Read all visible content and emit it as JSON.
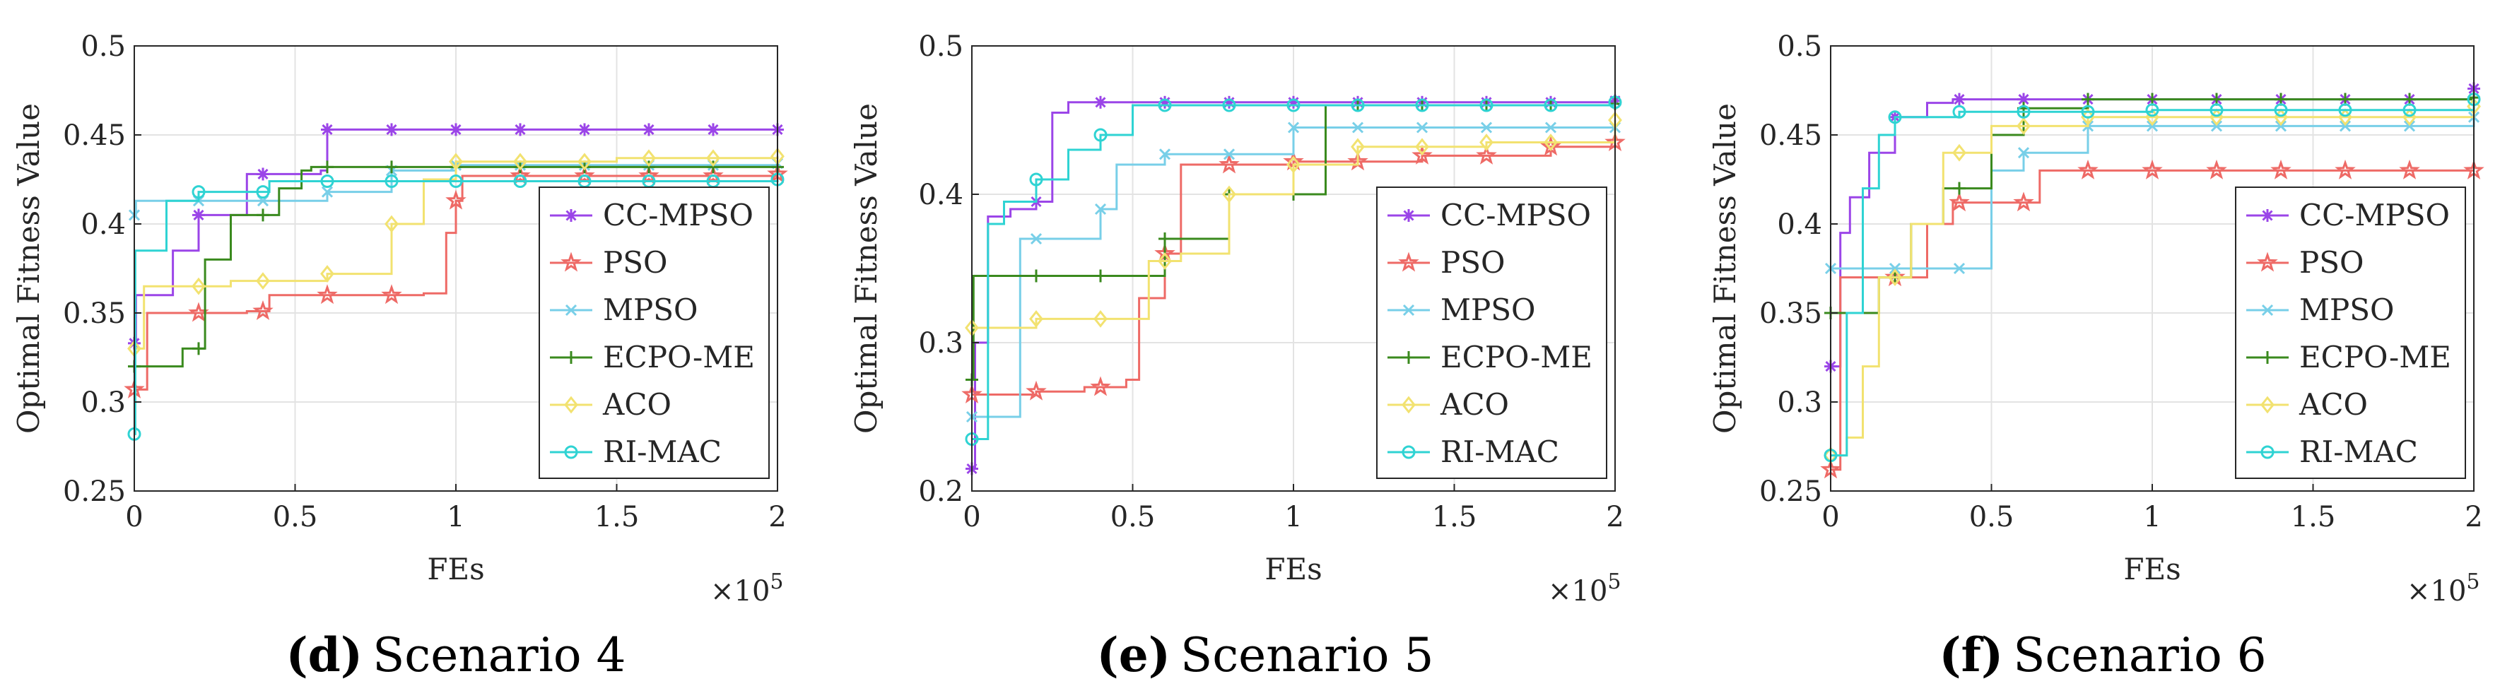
{
  "colors": {
    "CC-MPSO": "#9b45e8",
    "PSO": "#ee6a66",
    "MPSO": "#78cfe8",
    "ECPO-ME": "#3a8a1e",
    "ACO": "#f2e270",
    "RI-MAC": "#2fd3d3",
    "grid": "#e3e3e3",
    "axis": "#262626"
  },
  "chart_data": [
    {
      "type": "line",
      "caption": {
        "letter": "(d)",
        "text": "Scenario 4"
      },
      "xlabel": "FEs",
      "ylabel": "Optimal Fitness Value",
      "x_multiplier": "×10",
      "x_multiplier_exp": "5",
      "xlim": [
        0,
        2
      ],
      "ylim": [
        0.25,
        0.5
      ],
      "xticks": [
        "0",
        "0.5",
        "1",
        "1.5",
        "2"
      ],
      "yticks": [
        "0.25",
        "0.3",
        "0.35",
        "0.4",
        "0.45",
        "0.5"
      ],
      "legend_position": "lower-right",
      "series": [
        {
          "name": "CC-MPSO",
          "marker": "asterisk",
          "points": [
            [
              0,
              0.333
            ],
            [
              0.005,
              0.36
            ],
            [
              0.06,
              0.36
            ],
            [
              0.12,
              0.385
            ],
            [
              0.2,
              0.405
            ],
            [
              0.35,
              0.428
            ],
            [
              0.58,
              0.43
            ],
            [
              0.6,
              0.453
            ],
            [
              2,
              0.453
            ]
          ]
        },
        {
          "name": "PSO",
          "marker": "star",
          "points": [
            [
              0,
              0.307
            ],
            [
              0.04,
              0.35
            ],
            [
              0.35,
              0.351
            ],
            [
              0.42,
              0.36
            ],
            [
              0.9,
              0.361
            ],
            [
              0.97,
              0.395
            ],
            [
              1.0,
              0.413
            ],
            [
              1.02,
              0.427
            ],
            [
              2,
              0.428
            ]
          ]
        },
        {
          "name": "MPSO",
          "marker": "cross",
          "points": [
            [
              0,
              0.405
            ],
            [
              0.005,
              0.413
            ],
            [
              0.55,
              0.413
            ],
            [
              0.6,
              0.418
            ],
            [
              0.8,
              0.43
            ],
            [
              1.0,
              0.433
            ],
            [
              2,
              0.434
            ]
          ]
        },
        {
          "name": "ECPO-ME",
          "marker": "plus",
          "points": [
            [
              0,
              0.32
            ],
            [
              0.05,
              0.32
            ],
            [
              0.15,
              0.33
            ],
            [
              0.22,
              0.38
            ],
            [
              0.3,
              0.405
            ],
            [
              0.45,
              0.42
            ],
            [
              0.52,
              0.43
            ],
            [
              0.55,
              0.432
            ],
            [
              1.0,
              0.432
            ],
            [
              2,
              0.432
            ]
          ]
        },
        {
          "name": "ACO",
          "marker": "diamond",
          "points": [
            [
              0,
              0.33
            ],
            [
              0.03,
              0.365
            ],
            [
              0.3,
              0.368
            ],
            [
              0.6,
              0.372
            ],
            [
              0.8,
              0.4
            ],
            [
              0.9,
              0.425
            ],
            [
              1.0,
              0.435
            ],
            [
              1.5,
              0.437
            ],
            [
              2,
              0.438
            ]
          ]
        },
        {
          "name": "RI-MAC",
          "marker": "circle",
          "points": [
            [
              0,
              0.282
            ],
            [
              0.003,
              0.385
            ],
            [
              0.03,
              0.385
            ],
            [
              0.1,
              0.413
            ],
            [
              0.2,
              0.418
            ],
            [
              0.4,
              0.418
            ],
            [
              0.42,
              0.424
            ],
            [
              2,
              0.425
            ]
          ]
        }
      ]
    },
    {
      "type": "line",
      "caption": {
        "letter": "(e)",
        "text": "Scenario 5"
      },
      "xlabel": "FEs",
      "ylabel": "Optimal Fitness Value",
      "x_multiplier": "×10",
      "x_multiplier_exp": "5",
      "xlim": [
        0,
        2
      ],
      "ylim": [
        0.2,
        0.5
      ],
      "xticks": [
        "0",
        "0.5",
        "1",
        "1.5",
        "2"
      ],
      "yticks": [
        "0.2",
        "0.3",
        "0.4",
        "0.5"
      ],
      "legend_position": "lower-right",
      "series": [
        {
          "name": "CC-MPSO",
          "marker": "asterisk",
          "points": [
            [
              0,
              0.215
            ],
            [
              0.01,
              0.3
            ],
            [
              0.05,
              0.385
            ],
            [
              0.12,
              0.39
            ],
            [
              0.2,
              0.395
            ],
            [
              0.25,
              0.455
            ],
            [
              0.3,
              0.462
            ],
            [
              2,
              0.463
            ]
          ]
        },
        {
          "name": "PSO",
          "marker": "star",
          "points": [
            [
              0,
              0.265
            ],
            [
              0.2,
              0.267
            ],
            [
              0.35,
              0.27
            ],
            [
              0.48,
              0.275
            ],
            [
              0.52,
              0.33
            ],
            [
              0.6,
              0.36
            ],
            [
              0.65,
              0.42
            ],
            [
              1.0,
              0.422
            ],
            [
              1.4,
              0.426
            ],
            [
              1.8,
              0.432
            ],
            [
              2,
              0.435
            ]
          ]
        },
        {
          "name": "MPSO",
          "marker": "cross",
          "points": [
            [
              0,
              0.25
            ],
            [
              0.12,
              0.25
            ],
            [
              0.15,
              0.37
            ],
            [
              0.4,
              0.39
            ],
            [
              0.45,
              0.42
            ],
            [
              0.6,
              0.427
            ],
            [
              1.0,
              0.445
            ],
            [
              2,
              0.445
            ]
          ]
        },
        {
          "name": "ECPO-ME",
          "marker": "plus",
          "points": [
            [
              0,
              0.275
            ],
            [
              0.005,
              0.345
            ],
            [
              0.5,
              0.345
            ],
            [
              0.6,
              0.37
            ],
            [
              0.8,
              0.4
            ],
            [
              1.02,
              0.4
            ],
            [
              1.1,
              0.46
            ],
            [
              2,
              0.461
            ]
          ]
        },
        {
          "name": "ACO",
          "marker": "diamond",
          "points": [
            [
              0,
              0.31
            ],
            [
              0.2,
              0.316
            ],
            [
              0.5,
              0.316
            ],
            [
              0.55,
              0.355
            ],
            [
              0.65,
              0.36
            ],
            [
              0.8,
              0.4
            ],
            [
              1.0,
              0.42
            ],
            [
              1.2,
              0.432
            ],
            [
              1.6,
              0.435
            ],
            [
              2,
              0.45
            ]
          ]
        },
        {
          "name": "RI-MAC",
          "marker": "circle",
          "points": [
            [
              0,
              0.235
            ],
            [
              0.05,
              0.38
            ],
            [
              0.1,
              0.395
            ],
            [
              0.2,
              0.41
            ],
            [
              0.3,
              0.43
            ],
            [
              0.4,
              0.44
            ],
            [
              0.5,
              0.46
            ],
            [
              2,
              0.462
            ]
          ]
        }
      ]
    },
    {
      "type": "line",
      "caption": {
        "letter": "(f)",
        "text": "Scenario 6"
      },
      "xlabel": "FEs",
      "ylabel": "Optimal Fitness Value",
      "x_multiplier": "×10",
      "x_multiplier_exp": "5",
      "xlim": [
        0,
        2
      ],
      "ylim": [
        0.25,
        0.5
      ],
      "xticks": [
        "0",
        "0.5",
        "1",
        "1.5",
        "2"
      ],
      "yticks": [
        "0.25",
        "0.3",
        "0.35",
        "0.4",
        "0.45",
        "0.5"
      ],
      "legend_position": "lower-right",
      "series": [
        {
          "name": "CC-MPSO",
          "marker": "asterisk",
          "points": [
            [
              0,
              0.32
            ],
            [
              0.03,
              0.395
            ],
            [
              0.06,
              0.415
            ],
            [
              0.12,
              0.44
            ],
            [
              0.2,
              0.46
            ],
            [
              0.3,
              0.468
            ],
            [
              0.38,
              0.47
            ],
            [
              2,
              0.476
            ]
          ]
        },
        {
          "name": "PSO",
          "marker": "star",
          "points": [
            [
              0,
              0.262
            ],
            [
              0.03,
              0.37
            ],
            [
              0.3,
              0.4
            ],
            [
              0.38,
              0.412
            ],
            [
              0.6,
              0.412
            ],
            [
              0.65,
              0.43
            ],
            [
              2,
              0.43
            ]
          ]
        },
        {
          "name": "MPSO",
          "marker": "cross",
          "points": [
            [
              0,
              0.375
            ],
            [
              0.3,
              0.375
            ],
            [
              0.5,
              0.43
            ],
            [
              0.6,
              0.44
            ],
            [
              0.8,
              0.455
            ],
            [
              2,
              0.46
            ]
          ]
        },
        {
          "name": "ECPO-ME",
          "marker": "plus",
          "points": [
            [
              0,
              0.35
            ],
            [
              0.1,
              0.35
            ],
            [
              0.15,
              0.37
            ],
            [
              0.25,
              0.4
            ],
            [
              0.35,
              0.42
            ],
            [
              0.5,
              0.45
            ],
            [
              0.6,
              0.465
            ],
            [
              0.8,
              0.47
            ],
            [
              2,
              0.471
            ]
          ]
        },
        {
          "name": "ACO",
          "marker": "diamond",
          "points": [
            [
              0,
              0.27
            ],
            [
              0.05,
              0.28
            ],
            [
              0.1,
              0.32
            ],
            [
              0.15,
              0.37
            ],
            [
              0.25,
              0.4
            ],
            [
              0.35,
              0.44
            ],
            [
              0.5,
              0.455
            ],
            [
              0.8,
              0.46
            ],
            [
              2,
              0.466
            ]
          ]
        },
        {
          "name": "RI-MAC",
          "marker": "circle",
          "points": [
            [
              0,
              0.27
            ],
            [
              0.05,
              0.35
            ],
            [
              0.1,
              0.42
            ],
            [
              0.15,
              0.45
            ],
            [
              0.2,
              0.46
            ],
            [
              0.4,
              0.463
            ],
            [
              1.0,
              0.464
            ],
            [
              2,
              0.47
            ]
          ]
        }
      ]
    }
  ]
}
